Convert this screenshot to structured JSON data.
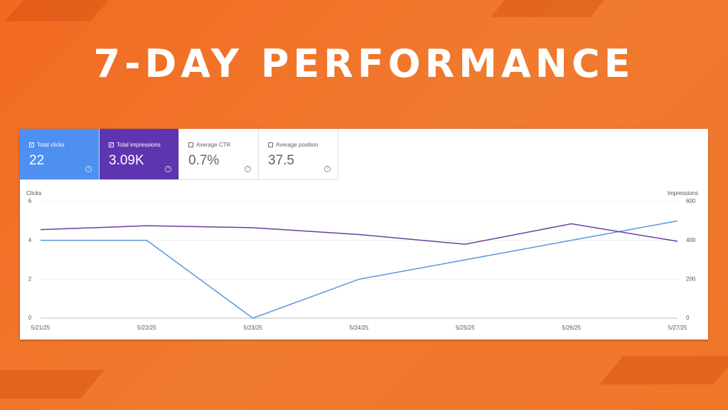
{
  "title": "7-DAY PERFORMANCE",
  "metrics": [
    {
      "label": "Total clicks",
      "value": "22",
      "checked": true,
      "color": "#4e8ff2"
    },
    {
      "label": "Total impressions",
      "value": "3.09K",
      "checked": true,
      "color": "#5e35b1"
    },
    {
      "label": "Average CTR",
      "value": "0.7%",
      "checked": false,
      "color": "#ffffff"
    },
    {
      "label": "Average position",
      "value": "37.5",
      "checked": false,
      "color": "#ffffff"
    }
  ],
  "chart_data": {
    "type": "line",
    "y_label": "Clicks",
    "y2_label": "Impressions",
    "categories": [
      "5/21/25",
      "5/22/25",
      "5/23/25",
      "5/24/25",
      "5/25/25",
      "5/26/25",
      "5/27/25"
    ],
    "series": [
      {
        "name": "Clicks",
        "color": "#5b97e0",
        "values": [
          4,
          4,
          0,
          2,
          3,
          4,
          5
        ]
      },
      {
        "name": "Impressions",
        "color": "#6a3fa0",
        "axis": "y2",
        "values": [
          455,
          475,
          465,
          430,
          380,
          485,
          395
        ]
      }
    ],
    "ylim": [
      0,
      6
    ],
    "yticks": [
      0,
      2,
      4,
      6
    ],
    "y2lim": [
      0,
      600
    ],
    "y2ticks": [
      0,
      200,
      400,
      600
    ],
    "grid": true
  }
}
